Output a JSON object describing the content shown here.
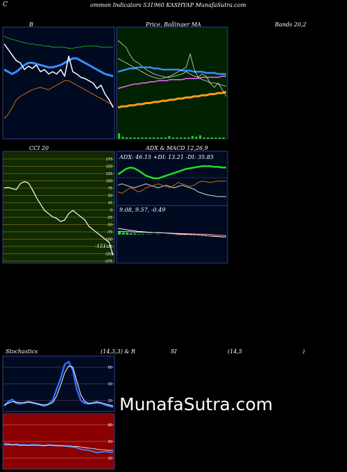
{
  "header": {
    "left": "C",
    "title": "ommon  Indicators 531960  KASHYAP MunafaSutra.com"
  },
  "watermark": "MunafaSutra.com",
  "panel_titles": {
    "bollinger_b": "B",
    "price_sma": "Price,  Bollinger  MA",
    "bands": "Bands 20,2",
    "cci": "CCI 20",
    "adx_macd": "ADX  & MACD 12,26,9",
    "adx_values": "ADX: 46.15  +DI: 13.21 -DI: 35.85",
    "macd_values": "9.08,  9.57,  -0.49",
    "stoch_left": "Stochastics",
    "stoch_params": "(14,3,3) & R",
    "rsi": "SI",
    "rsi_params": "(14,5",
    "rsi_close": ")"
  },
  "cci_last_label": "-151",
  "chart_data": [
    {
      "type": "line",
      "panel": "Bollinger Bands",
      "series": [
        {
          "values": [
            92,
            90,
            89,
            88,
            87,
            86,
            85,
            85,
            84,
            84,
            83,
            83,
            82,
            82,
            82,
            82,
            81,
            81,
            82,
            82,
            83,
            83,
            83,
            83,
            82,
            82,
            82,
            82
          ]
        },
        {
          "values": [
            62,
            60,
            58,
            60,
            63,
            66,
            68,
            68,
            67,
            66,
            65,
            64,
            64,
            65,
            66,
            68,
            70,
            72,
            72,
            70,
            68,
            66,
            64,
            62,
            60,
            58,
            57,
            56
          ]
        },
        {
          "values": [
            18,
            22,
            28,
            35,
            38,
            40,
            42,
            44,
            45,
            46,
            45,
            44,
            46,
            48,
            50,
            52,
            52,
            50,
            48,
            46,
            44,
            42,
            40,
            38,
            36,
            34,
            32,
            30
          ]
        },
        {
          "values": [
            85,
            80,
            75,
            70,
            68,
            62,
            65,
            63,
            66,
            60,
            62,
            58,
            60,
            58,
            62,
            56,
            74,
            60,
            58,
            55,
            54,
            52,
            50,
            45,
            48,
            40,
            35,
            28
          ]
        }
      ]
    },
    {
      "type": "line",
      "panel": "Price, SMA",
      "series": [
        {
          "values": [
            88,
            85,
            82,
            75,
            70,
            68,
            65,
            62,
            60,
            58,
            57,
            56,
            55,
            55,
            56,
            57,
            58,
            60,
            58,
            56,
            55,
            53,
            52,
            50,
            50,
            49,
            48,
            47
          ]
        },
        {
          "values": [
            60,
            61,
            62,
            63,
            63,
            64,
            64,
            64,
            64,
            63,
            63,
            62,
            62,
            62,
            62,
            62,
            61,
            61,
            61,
            60,
            60,
            60,
            59,
            59,
            59,
            58,
            58,
            58
          ]
        },
        {
          "values": [
            45,
            46,
            47,
            48,
            49,
            49,
            50,
            50,
            51,
            51,
            52,
            52,
            52,
            53,
            53,
            53,
            53,
            54,
            54,
            54,
            54,
            55,
            55,
            55,
            55,
            55,
            56,
            56
          ]
        },
        {
          "values": [
            28,
            29,
            29,
            30,
            30,
            31,
            31,
            32,
            32,
            33,
            33,
            34,
            34,
            35,
            35,
            36,
            36,
            37,
            37,
            38,
            38,
            39,
            39,
            40,
            40,
            41,
            41,
            42
          ]
        },
        {
          "values": [
            72,
            70,
            68,
            66,
            64,
            62,
            60,
            58,
            56,
            55,
            54,
            54,
            55,
            56,
            58,
            60,
            62,
            64,
            76,
            62,
            55,
            58,
            56,
            50,
            46,
            50,
            44,
            38
          ]
        }
      ],
      "volume": [
        8,
        3,
        2,
        2,
        2,
        2,
        2,
        2,
        2,
        2,
        2,
        2,
        2,
        4,
        2,
        2,
        2,
        2,
        2,
        4,
        3,
        5,
        2,
        2,
        2,
        2,
        2,
        2
      ]
    },
    {
      "type": "line",
      "panel": "CCI 20",
      "y_ticks": [
        175,
        150,
        125,
        100,
        75,
        50,
        25,
        0,
        -25,
        -50,
        -75,
        -100,
        -125,
        -150,
        -175
      ],
      "series": [
        {
          "values": [
            60,
            62,
            58,
            55,
            74,
            80,
            76,
            55,
            30,
            10,
            -10,
            -20,
            -30,
            -35,
            -45,
            -40,
            -20,
            -10,
            -20,
            -30,
            -40,
            -60,
            -70,
            -80,
            -90,
            -100,
            -110,
            -151
          ]
        }
      ]
    },
    {
      "type": "line",
      "panel": "ADX & MACD",
      "adx_series": [
        {
          "name": "ADX",
          "values": [
            46,
            50,
            54,
            56,
            55,
            52,
            48,
            44,
            42,
            40,
            40,
            42,
            44,
            46,
            48,
            50,
            52,
            54,
            55,
            56,
            57,
            58,
            58,
            58,
            57,
            57,
            56,
            56
          ]
        },
        {
          "name": "+DI",
          "values": [
            30,
            32,
            30,
            28,
            26,
            28,
            30,
            32,
            30,
            28,
            26,
            28,
            30,
            28,
            26,
            28,
            30,
            28,
            26,
            24,
            20,
            18,
            16,
            15,
            14,
            13,
            13,
            13
          ]
        },
        {
          "name": "-DI",
          "values": [
            20,
            18,
            22,
            26,
            24,
            20,
            22,
            26,
            28,
            30,
            32,
            30,
            28,
            26,
            30,
            34,
            32,
            30,
            28,
            30,
            34,
            36,
            35,
            34,
            35,
            36,
            36,
            36
          ]
        }
      ],
      "macd_series": [
        {
          "name": "MACD",
          "values": [
            12,
            11.8,
            11.6,
            11.4,
            11.2,
            11,
            10.9,
            10.8,
            10.7,
            10.6,
            10.6,
            10.5,
            10.4,
            10.3,
            10.2,
            10.1,
            10,
            10,
            9.9,
            9.8,
            9.7,
            9.6,
            9.5,
            9.4,
            9.3,
            9.2,
            9.1,
            9.08
          ]
        },
        {
          "name": "Signal",
          "values": [
            11,
            11,
            10.9,
            10.9,
            10.8,
            10.8,
            10.7,
            10.7,
            10.6,
            10.6,
            10.5,
            10.5,
            10.4,
            10.4,
            10.3,
            10.3,
            10.2,
            10.2,
            10.1,
            10.1,
            10,
            10,
            9.9,
            9.9,
            9.8,
            9.7,
            9.6,
            9.57
          ]
        }
      ]
    },
    {
      "type": "line",
      "panel": "Stochastics",
      "y_ticks": [
        80,
        50,
        20
      ],
      "series": [
        {
          "values": [
            10,
            18,
            22,
            15,
            14,
            16,
            18,
            16,
            14,
            12,
            10,
            14,
            20,
            40,
            60,
            85,
            90,
            75,
            40,
            20,
            15,
            14,
            16,
            18,
            15,
            12,
            10,
            8
          ]
        },
        {
          "values": [
            12,
            15,
            18,
            17,
            16,
            16,
            17,
            16,
            15,
            13,
            12,
            13,
            16,
            28,
            48,
            70,
            82,
            80,
            55,
            30,
            18,
            15,
            15,
            16,
            16,
            14,
            12,
            10
          ]
        }
      ]
    },
    {
      "type": "line",
      "panel": "RSI",
      "y_ticks": [
        80,
        50,
        20
      ],
      "series": [
        {
          "values": [
            46,
            46,
            44,
            45,
            44,
            44,
            43,
            44,
            44,
            43,
            42,
            44,
            43,
            42,
            43,
            42,
            41,
            40,
            39,
            36,
            35,
            34,
            32,
            30,
            31,
            32,
            31,
            30
          ]
        },
        {
          "values": [
            44,
            44,
            44,
            44,
            43,
            43,
            43,
            43,
            43,
            43,
            43,
            43,
            43,
            43,
            42,
            42,
            42,
            41,
            41,
            40,
            39,
            38,
            37,
            36,
            35,
            35,
            34,
            34
          ]
        }
      ]
    }
  ]
}
